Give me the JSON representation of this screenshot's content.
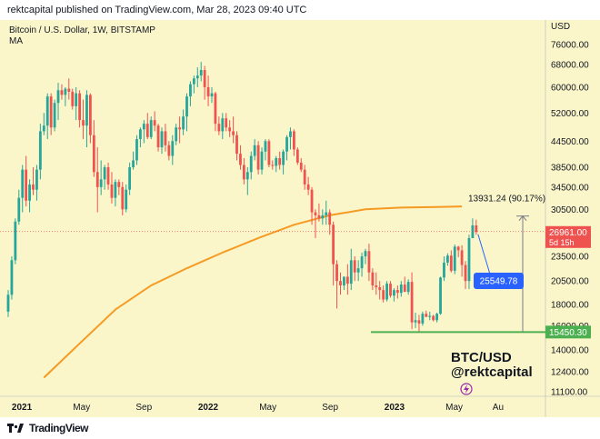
{
  "header": {
    "published": "rektcapital published on TradingView.com, Mar 28, 2023 09:40 UTC"
  },
  "footer": {
    "brand": "TradingView",
    "logo_text": "17"
  },
  "chart_data": {
    "type": "candlestick",
    "symbol": "Bitcoin / U.S. Dollar, 1W, BITSTAMP",
    "indicator": "MA",
    "currency": "USD",
    "background": "#fbf6c9",
    "up_color": "#26a69a",
    "down_color": "#ef5350",
    "ma_color": "#f59a23",
    "y_ticks": [
      76000,
      68000,
      60000,
      52000,
      44500,
      38500,
      34500,
      30500,
      23500,
      20500,
      18000,
      16000,
      14000,
      12400,
      11100
    ],
    "y_tick_labels": [
      "76000.00",
      "68000.00",
      "60000.00",
      "52000.00",
      "44500.00",
      "38500.00",
      "34500.00",
      "30500.00",
      "23500.00",
      "20500.00",
      "18000.00",
      "16000.00",
      "14000.00",
      "12400.00",
      "11100.00"
    ],
    "x_labels": [
      {
        "label": "2021",
        "date": "2021-01-01",
        "bold": true
      },
      {
        "label": "May",
        "date": "2021-05-01",
        "bold": false
      },
      {
        "label": "Sep",
        "date": "2021-09-01",
        "bold": false
      },
      {
        "label": "2022",
        "date": "2022-01-01",
        "bold": true
      },
      {
        "label": "May",
        "date": "2022-05-01",
        "bold": false
      },
      {
        "label": "Sep",
        "date": "2022-09-01",
        "bold": false
      },
      {
        "label": "2023",
        "date": "2023-01-01",
        "bold": true
      },
      {
        "label": "May",
        "date": "2023-05-01",
        "bold": false
      },
      {
        "label": "Au",
        "date": "2023-08-01",
        "bold": false
      }
    ],
    "candles": [
      [
        17300,
        16800,
        19500,
        19000
      ],
      [
        19000,
        18500,
        23500,
        23000
      ],
      [
        23000,
        22500,
        29000,
        28500
      ],
      [
        28500,
        28000,
        34000,
        32500
      ],
      [
        32500,
        30000,
        39000,
        38000
      ],
      [
        38000,
        31000,
        41000,
        32000
      ],
      [
        32000,
        30000,
        36000,
        35000
      ],
      [
        35000,
        33000,
        38500,
        34000
      ],
      [
        34000,
        32000,
        39000,
        38000
      ],
      [
        38000,
        36000,
        49000,
        47000
      ],
      [
        47000,
        46000,
        52000,
        48500
      ],
      [
        48500,
        45000,
        58000,
        57000
      ],
      [
        57000,
        46000,
        58000,
        48000
      ],
      [
        48000,
        47000,
        56000,
        55000
      ],
      [
        55000,
        50000,
        61500,
        59000
      ],
      [
        59000,
        56000,
        61000,
        57500
      ],
      [
        57500,
        54000,
        60000,
        59500
      ],
      [
        59500,
        56000,
        63000,
        58500
      ],
      [
        58500,
        53000,
        59500,
        54000
      ],
      [
        54000,
        50000,
        60000,
        58000
      ],
      [
        58000,
        48000,
        59000,
        50000
      ],
      [
        50000,
        45000,
        56000,
        48500
      ],
      [
        48500,
        43000,
        59000,
        57500
      ],
      [
        57500,
        44000,
        58000,
        46000
      ],
      [
        46000,
        36500,
        50000,
        37500
      ],
      [
        37500,
        30000,
        43000,
        34500
      ],
      [
        34500,
        33000,
        40000,
        36000
      ],
      [
        36000,
        34000,
        39000,
        38500
      ],
      [
        38500,
        34000,
        39500,
        35000
      ],
      [
        35000,
        31500,
        37500,
        32500
      ],
      [
        32500,
        31000,
        36000,
        35500
      ],
      [
        35500,
        33000,
        36000,
        34500
      ],
      [
        34500,
        29500,
        35500,
        30500
      ],
      [
        30500,
        30000,
        35000,
        34000
      ],
      [
        34000,
        33000,
        39500,
        38500
      ],
      [
        38500,
        38000,
        42000,
        40000
      ],
      [
        40000,
        39000,
        46000,
        45000
      ],
      [
        45000,
        43000,
        48000,
        47500
      ],
      [
        47500,
        44000,
        50000,
        49000
      ],
      [
        49000,
        45000,
        52000,
        45500
      ],
      [
        45500,
        45000,
        51000,
        50000
      ],
      [
        50000,
        47000,
        52500,
        48500
      ],
      [
        48500,
        42000,
        49000,
        43000
      ],
      [
        43000,
        41500,
        48000,
        47000
      ],
      [
        47000,
        42000,
        49000,
        43500
      ],
      [
        43500,
        40000,
        44500,
        41000
      ],
      [
        41000,
        39000,
        46000,
        44500
      ],
      [
        44500,
        43500,
        49000,
        48000
      ],
      [
        48000,
        44000,
        51000,
        47500
      ],
      [
        47500,
        46000,
        53000,
        51000
      ],
      [
        51000,
        47000,
        58000,
        57000
      ],
      [
        57000,
        54000,
        62000,
        61000
      ],
      [
        61000,
        58000,
        64000,
        63000
      ],
      [
        63000,
        60000,
        67000,
        64000
      ],
      [
        64000,
        62000,
        69000,
        66000
      ],
      [
        66000,
        56000,
        67500,
        60000
      ],
      [
        60000,
        54000,
        64000,
        57000
      ],
      [
        57000,
        55000,
        60000,
        58000
      ],
      [
        58000,
        47000,
        58500,
        49000
      ],
      [
        49000,
        46000,
        51000,
        47000
      ],
      [
        47000,
        45000,
        52000,
        50500
      ],
      [
        50500,
        47000,
        52000,
        48000
      ],
      [
        48000,
        45500,
        50000,
        47000
      ],
      [
        47000,
        44000,
        51000,
        46000
      ],
      [
        46000,
        40000,
        47000,
        41500
      ],
      [
        41500,
        38000,
        43500,
        39000
      ],
      [
        39000,
        35000,
        40500,
        36000
      ],
      [
        36000,
        33000,
        38500,
        37500
      ],
      [
        37500,
        36000,
        42000,
        41000
      ],
      [
        41000,
        40000,
        45000,
        43500
      ],
      [
        43500,
        37000,
        44500,
        38000
      ],
      [
        38000,
        37000,
        43000,
        42000
      ],
      [
        42000,
        40000,
        45000,
        44500
      ],
      [
        44500,
        38500,
        45000,
        39000
      ],
      [
        39000,
        38000,
        40000,
        38800
      ],
      [
        38800,
        37500,
        41000,
        40500
      ],
      [
        40500,
        38000,
        42000,
        39000
      ],
      [
        39000,
        37000,
        42500,
        42000
      ],
      [
        42000,
        40000,
        46000,
        45500
      ],
      [
        45500,
        42500,
        48000,
        47000
      ],
      [
        47000,
        41000,
        47500,
        42500
      ],
      [
        42500,
        39000,
        43000,
        39500
      ],
      [
        39500,
        37500,
        40500,
        38000
      ],
      [
        38000,
        34000,
        39000,
        35000
      ],
      [
        35000,
        33000,
        36500,
        34000
      ],
      [
        34000,
        28000,
        34500,
        30000
      ],
      [
        30000,
        26000,
        30500,
        29500
      ],
      [
        29500,
        28500,
        31500,
        29000
      ],
      [
        29000,
        28000,
        30500,
        29500
      ],
      [
        29500,
        28000,
        32000,
        30000
      ],
      [
        30000,
        26500,
        30500,
        28000
      ],
      [
        28000,
        20000,
        28500,
        22500
      ],
      [
        22500,
        17600,
        23000,
        20500
      ],
      [
        20500,
        19000,
        21500,
        20000
      ],
      [
        20000,
        19500,
        21000,
        21000
      ],
      [
        21000,
        19000,
        22500,
        20200
      ],
      [
        20200,
        19500,
        24500,
        23000
      ],
      [
        23000,
        20500,
        23500,
        21500
      ],
      [
        21500,
        20500,
        23000,
        22000
      ],
      [
        22000,
        21000,
        24000,
        23500
      ],
      [
        23500,
        22500,
        24500,
        24200
      ],
      [
        24200,
        20500,
        25200,
        21500
      ],
      [
        21500,
        19500,
        22000,
        20000
      ],
      [
        20000,
        19000,
        21500,
        19800
      ],
      [
        19800,
        18500,
        20500,
        19500
      ],
      [
        19500,
        18200,
        20000,
        18500
      ],
      [
        18500,
        18300,
        20500,
        20200
      ],
      [
        20200,
        18700,
        20500,
        18900
      ],
      [
        18900,
        18300,
        19700,
        19500
      ],
      [
        19500,
        18600,
        20000,
        19200
      ],
      [
        19200,
        18800,
        20500,
        20100
      ],
      [
        20100,
        19400,
        21000,
        19300
      ],
      [
        19300,
        19000,
        20700,
        20400
      ],
      [
        20400,
        15700,
        21500,
        16300
      ],
      [
        16300,
        15800,
        17200,
        16500
      ],
      [
        16500,
        15500,
        17000,
        16200
      ],
      [
        16200,
        16000,
        17300,
        17100
      ],
      [
        17100,
        16800,
        17400,
        16800
      ],
      [
        16800,
        16500,
        17300,
        16900
      ],
      [
        16900,
        16400,
        17000,
        16500
      ],
      [
        16500,
        16300,
        17200,
        17100
      ],
      [
        17100,
        17000,
        21000,
        20900
      ],
      [
        20900,
        20500,
        23500,
        22700
      ],
      [
        22700,
        22300,
        23900,
        23600
      ],
      [
        23600,
        21500,
        24300,
        21700
      ],
      [
        21700,
        21300,
        25100,
        24800
      ],
      [
        24800,
        23400,
        24900,
        24300
      ],
      [
        24300,
        21000,
        25000,
        22400
      ],
      [
        22400,
        19600,
        22900,
        20500
      ],
      [
        20500,
        19600,
        26500,
        26000
      ],
      [
        26000,
        26000,
        29000,
        27900
      ],
      [
        27900,
        26500,
        28800,
        26900
      ]
    ],
    "ma_points": [
      [
        10,
        12000
      ],
      [
        20,
        14500
      ],
      [
        30,
        17500
      ],
      [
        40,
        20000
      ],
      [
        50,
        22000
      ],
      [
        60,
        24000
      ],
      [
        70,
        26000
      ],
      [
        80,
        28000
      ],
      [
        90,
        29500
      ],
      [
        100,
        30500
      ],
      [
        110,
        30800
      ],
      [
        120,
        30900
      ],
      [
        127,
        31000
      ]
    ],
    "support_level": 15450.3,
    "support_label": "15450.30",
    "current_price_label": "26961.00",
    "countdown_label": "5d 15h",
    "current_price": 26961,
    "target_label": "25549.78",
    "target_price": 25549.78,
    "rise_label": "13931.24 (90.17%)",
    "measure_top": 29382,
    "measure_bottom": 15450.3,
    "watermark_line1": "BTC/USD",
    "watermark_line2": "@rektcapital"
  }
}
